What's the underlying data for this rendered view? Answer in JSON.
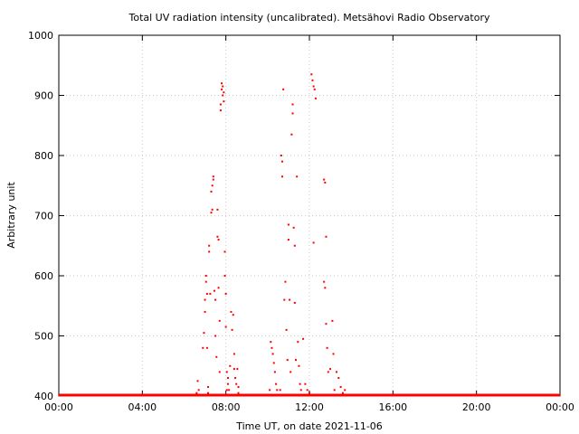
{
  "chart_data": {
    "type": "scatter",
    "title": "Total UV radiation intensity (uncalibrated). Metsähovi Radio Observatory",
    "xlabel": "Time UT, on date 2021-11-06",
    "ylabel": "Arbitrary unit",
    "x_unit": "hours UT",
    "xlim": [
      0,
      24
    ],
    "ylim": [
      400,
      1000
    ],
    "x_ticks": [
      {
        "value": 0,
        "label": "00:00"
      },
      {
        "value": 4,
        "label": "04:00"
      },
      {
        "value": 8,
        "label": "08:00"
      },
      {
        "value": 12,
        "label": "12:00"
      },
      {
        "value": 16,
        "label": "16:00"
      },
      {
        "value": 20,
        "label": "20:00"
      },
      {
        "value": 24,
        "label": "00:00"
      }
    ],
    "y_ticks": [
      {
        "value": 400,
        "label": "400"
      },
      {
        "value": 500,
        "label": "500"
      },
      {
        "value": 600,
        "label": "600"
      },
      {
        "value": 700,
        "label": "700"
      },
      {
        "value": 800,
        "label": "800"
      },
      {
        "value": 900,
        "label": "900"
      },
      {
        "value": 1000,
        "label": "1000"
      }
    ],
    "grid": true,
    "baseline": {
      "value": 400,
      "x_range": [
        0,
        24
      ],
      "note_shown": false
    },
    "series": [
      {
        "color": "#ff0000",
        "points": [
          [
            6.6,
            405
          ],
          [
            6.65,
            425
          ],
          [
            6.7,
            410
          ],
          [
            6.8,
            402
          ],
          [
            6.9,
            480
          ],
          [
            6.95,
            505
          ],
          [
            7.0,
            540
          ],
          [
            7.0,
            560
          ],
          [
            7.05,
            590
          ],
          [
            7.05,
            600
          ],
          [
            7.1,
            570
          ],
          [
            7.1,
            480
          ],
          [
            7.15,
            415
          ],
          [
            7.15,
            405
          ],
          [
            7.2,
            650
          ],
          [
            7.2,
            640
          ],
          [
            7.25,
            570
          ],
          [
            7.3,
            705
          ],
          [
            7.3,
            740
          ],
          [
            7.35,
            710
          ],
          [
            7.35,
            750
          ],
          [
            7.4,
            760
          ],
          [
            7.4,
            765
          ],
          [
            7.45,
            575
          ],
          [
            7.5,
            560
          ],
          [
            7.5,
            500
          ],
          [
            7.55,
            465
          ],
          [
            7.6,
            710
          ],
          [
            7.6,
            665
          ],
          [
            7.65,
            660
          ],
          [
            7.65,
            580
          ],
          [
            7.7,
            525
          ],
          [
            7.7,
            440
          ],
          [
            7.75,
            885
          ],
          [
            7.75,
            875
          ],
          [
            7.8,
            920
          ],
          [
            7.8,
            910
          ],
          [
            7.85,
            915
          ],
          [
            7.85,
            900
          ],
          [
            7.9,
            905
          ],
          [
            7.9,
            890
          ],
          [
            7.95,
            640
          ],
          [
            7.95,
            600
          ],
          [
            8.0,
            570
          ],
          [
            8.0,
            515
          ],
          [
            8.05,
            440
          ],
          [
            8.05,
            410
          ],
          [
            8.1,
            430
          ],
          [
            8.1,
            420
          ],
          [
            8.15,
            410
          ],
          [
            8.2,
            450
          ],
          [
            8.25,
            540
          ],
          [
            8.3,
            510
          ],
          [
            8.35,
            535
          ],
          [
            8.4,
            470
          ],
          [
            8.4,
            445
          ],
          [
            8.45,
            430
          ],
          [
            8.5,
            420
          ],
          [
            8.55,
            445
          ],
          [
            8.6,
            415
          ],
          [
            8.6,
            405
          ],
          [
            10.1,
            410
          ],
          [
            10.15,
            490
          ],
          [
            10.2,
            480
          ],
          [
            10.25,
            470
          ],
          [
            10.3,
            455
          ],
          [
            10.35,
            440
          ],
          [
            10.4,
            420
          ],
          [
            10.45,
            410
          ],
          [
            10.6,
            410
          ],
          [
            10.65,
            800
          ],
          [
            10.7,
            790
          ],
          [
            10.7,
            765
          ],
          [
            10.75,
            910
          ],
          [
            10.8,
            560
          ],
          [
            10.85,
            590
          ],
          [
            10.9,
            510
          ],
          [
            10.95,
            460
          ],
          [
            11.0,
            685
          ],
          [
            11.0,
            660
          ],
          [
            11.05,
            560
          ],
          [
            11.1,
            440
          ],
          [
            11.15,
            835
          ],
          [
            11.2,
            870
          ],
          [
            11.2,
            885
          ],
          [
            11.25,
            680
          ],
          [
            11.3,
            650
          ],
          [
            11.3,
            555
          ],
          [
            11.35,
            460
          ],
          [
            11.4,
            765
          ],
          [
            11.45,
            490
          ],
          [
            11.5,
            450
          ],
          [
            11.55,
            420
          ],
          [
            11.6,
            410
          ],
          [
            11.7,
            495
          ],
          [
            11.8,
            420
          ],
          [
            11.9,
            410
          ],
          [
            12.0,
            405
          ],
          [
            12.1,
            935
          ],
          [
            12.15,
            925
          ],
          [
            12.2,
            915
          ],
          [
            12.25,
            910
          ],
          [
            12.3,
            895
          ],
          [
            12.2,
            655
          ],
          [
            12.7,
            760
          ],
          [
            12.75,
            755
          ],
          [
            12.8,
            665
          ],
          [
            12.7,
            590
          ],
          [
            12.75,
            580
          ],
          [
            12.8,
            520
          ],
          [
            12.85,
            480
          ],
          [
            12.9,
            440
          ],
          [
            13.0,
            445
          ],
          [
            13.1,
            525
          ],
          [
            13.15,
            470
          ],
          [
            13.2,
            410
          ],
          [
            13.3,
            440
          ],
          [
            13.4,
            430
          ],
          [
            13.5,
            415
          ],
          [
            13.6,
            405
          ],
          [
            13.7,
            410
          ]
        ]
      }
    ]
  }
}
